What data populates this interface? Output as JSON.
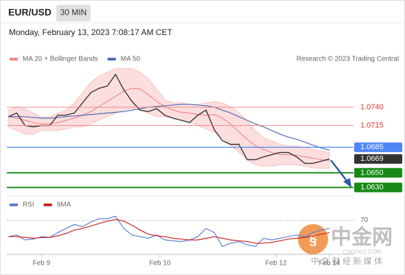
{
  "header": {
    "symbol": "EUR/USD",
    "interval": "30 MIN",
    "timestamp": "Monday, February 13, 2023 7:08:17 AM CET"
  },
  "watermark": {
    "brand": "中金网",
    "site": "CNGOLD.COM",
    "tagline": "中 文 财 经 新 媒 体"
  },
  "chart_data": [
    {
      "type": "line",
      "source": "Research © 2023 Trading Central",
      "x": [
        0,
        1,
        2,
        3,
        4,
        5,
        6,
        7,
        8,
        9,
        10,
        11,
        12,
        13,
        14,
        15,
        16,
        17,
        18,
        19,
        20,
        21,
        22,
        23,
        24,
        25,
        26,
        27,
        28,
        29,
        30,
        31,
        32,
        33,
        34,
        35,
        36,
        37,
        38,
        39
      ],
      "xlim": [
        -0.2,
        41.5
      ],
      "xticks": [
        {
          "value": 4,
          "label": "Feb 9"
        },
        {
          "value": 18.4,
          "label": "Feb 10"
        },
        {
          "value": 32.5,
          "label": "Feb 12"
        },
        {
          "value": 39,
          "label": "Feb 14"
        }
      ],
      "ylim": [
        1.0623,
        1.07975
      ],
      "price": {
        "color": "#333333",
        "values": [
          1.0727,
          1.0732,
          1.0715,
          1.0713,
          1.0715,
          1.0715,
          1.0729,
          1.0729,
          1.0732,
          1.0746,
          1.076,
          1.0766,
          1.0769,
          1.0785,
          1.0764,
          1.0748,
          1.0736,
          1.0734,
          1.0738,
          1.0729,
          1.0725,
          1.0722,
          1.0719,
          1.0729,
          1.0736,
          1.0709,
          1.0694,
          1.0689,
          1.0689,
          1.0668,
          1.0668,
          1.0672,
          1.0675,
          1.0678,
          1.0678,
          1.0672,
          1.0663,
          1.0663,
          1.0666,
          1.0669
        ]
      },
      "series": [
        {
          "name": "MA 20 + Bollinger Bands",
          "color": "#f08a8a",
          "band_color": "#fbd3d3",
          "values": [
            1.0727,
            1.0725,
            1.0722,
            1.0719,
            1.0717,
            1.0717,
            1.0719,
            1.0722,
            1.0725,
            1.0729,
            1.0734,
            1.0741,
            1.0748,
            1.0755,
            1.0762,
            1.0766,
            1.0765,
            1.0757,
            1.0748,
            1.0741,
            1.0736,
            1.0733,
            1.0732,
            1.073,
            1.0729,
            1.073,
            1.0725,
            1.0717,
            1.0706,
            1.0696,
            1.0687,
            1.0682,
            1.0678,
            1.0675,
            1.0675,
            1.0674,
            1.0672,
            1.067,
            1.0668,
            1.0667
          ],
          "upper": [
            1.0736,
            1.0741,
            1.0738,
            1.0732,
            1.0727,
            1.0727,
            1.0732,
            1.0736,
            1.0746,
            1.076,
            1.0774,
            1.0783,
            1.0788,
            1.0793,
            1.0793,
            1.0793,
            1.0788,
            1.0779,
            1.0765,
            1.075,
            1.0746,
            1.0746,
            1.0744,
            1.0744,
            1.0746,
            1.0748,
            1.0746,
            1.0741,
            1.0732,
            1.0722,
            1.0708,
            1.0698,
            1.0694,
            1.0689,
            1.0687,
            1.0687,
            1.0685,
            1.0682,
            1.068,
            1.0678
          ],
          "lower": [
            1.0713,
            1.0708,
            1.0703,
            1.0703,
            1.0708,
            1.0708,
            1.0708,
            1.071,
            1.0713,
            1.0713,
            1.0717,
            1.0722,
            1.0727,
            1.0732,
            1.0736,
            1.0738,
            1.0736,
            1.0732,
            1.0727,
            1.0727,
            1.0725,
            1.0722,
            1.0719,
            1.0715,
            1.071,
            1.0706,
            1.0698,
            1.0687,
            1.0678,
            1.0668,
            1.0661,
            1.0659,
            1.0659,
            1.0661,
            1.0661,
            1.0661,
            1.0659,
            1.0657,
            1.0656,
            1.0656
          ]
        },
        {
          "name": "MA 50",
          "color": "#4a6bb5",
          "values": [
            1.0727,
            1.0727,
            1.0727,
            1.0726,
            1.0725,
            1.0725,
            1.0726,
            1.0727,
            1.0728,
            1.0729,
            1.073,
            1.0731,
            1.0732,
            1.0733,
            1.0734,
            1.0736,
            1.0738,
            1.074,
            1.0741,
            1.0742,
            1.0743,
            1.0744,
            1.0744,
            1.0743,
            1.0742,
            1.074,
            1.0736,
            1.0732,
            1.0727,
            1.0722,
            1.0717,
            1.0713,
            1.0708,
            1.0703,
            1.0699,
            1.0696,
            1.0692,
            1.0688,
            1.0684,
            1.0681
          ]
        }
      ],
      "levels": [
        {
          "value": 1.074,
          "label": "1.0740",
          "color": "#f08a8a",
          "boxed": false
        },
        {
          "value": 1.0715,
          "label": "1.0715",
          "color": "#f08a8a",
          "boxed": false
        },
        {
          "value": 1.0685,
          "label": "1.0685",
          "color": "#4f86f7",
          "boxed": true
        },
        {
          "value": 1.0669,
          "label": "1.0669",
          "color": "#333333",
          "boxed": true
        },
        {
          "value": 1.065,
          "label": "1.0650",
          "color": "#178a17",
          "boxed": true
        },
        {
          "value": 1.063,
          "label": "1.0630",
          "color": "#178a17",
          "boxed": true
        }
      ]
    },
    {
      "type": "line",
      "x": [
        0,
        1,
        2,
        3,
        4,
        5,
        6,
        7,
        8,
        9,
        10,
        11,
        12,
        13,
        14,
        15,
        16,
        17,
        18,
        19,
        20,
        21,
        22,
        23,
        24,
        25,
        26,
        27,
        28,
        29,
        30,
        31,
        32,
        33,
        34,
        35,
        36,
        37,
        38,
        39
      ],
      "xlim": [
        -0.2,
        41.5
      ],
      "ylim": [
        30,
        83
      ],
      "yticks": [
        70
      ],
      "series": [
        {
          "name": "RSI",
          "color": "#5b7fd4",
          "values": [
            50,
            52,
            46,
            47,
            50,
            49,
            55,
            60,
            65,
            62,
            68,
            72,
            72,
            75,
            60,
            52,
            50,
            48,
            52,
            46,
            45,
            44,
            46,
            50,
            60,
            55,
            38,
            42,
            44,
            40,
            38,
            48,
            46,
            48,
            50,
            52,
            50,
            55,
            58,
            60
          ]
        },
        {
          "name": "9MA",
          "color": "#cc2222",
          "values": [
            50,
            50,
            49,
            48,
            49,
            49,
            51,
            54,
            58,
            60,
            63,
            66,
            69,
            71,
            69,
            64,
            58,
            53,
            51,
            50,
            48,
            47,
            46,
            46,
            48,
            50,
            48,
            46,
            45,
            44,
            42,
            42,
            43,
            45,
            47,
            48,
            49,
            51,
            53,
            55
          ]
        }
      ]
    }
  ]
}
